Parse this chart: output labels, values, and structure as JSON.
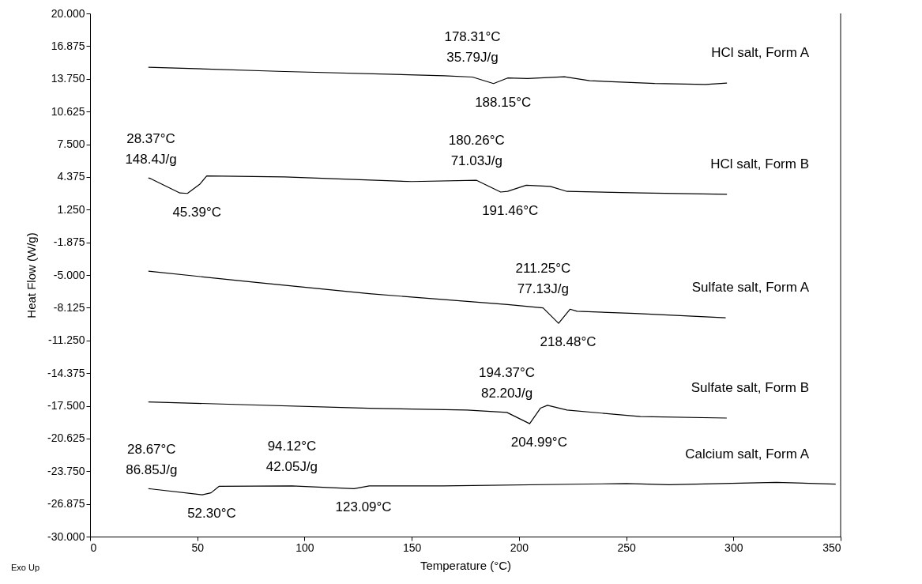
{
  "chart_data": {
    "type": "line",
    "xlabel": "Temperature (°C)",
    "ylabel": "Heat Flow (W/g)",
    "xlim": [
      0,
      350
    ],
    "xticks": [
      0,
      50,
      100,
      150,
      200,
      250,
      300,
      350
    ],
    "ylim": [
      -30,
      20
    ],
    "yticks": [
      {
        "value": 20,
        "label": "20.000"
      },
      16.875,
      {
        "value": 13.75,
        "label": "13.750"
      },
      10.625,
      {
        "value": 7.5,
        "label": "7.500"
      },
      4.375,
      {
        "value": 1.25,
        "label": "1.250"
      },
      -1.875,
      {
        "value": -5,
        "label": "-5.000"
      },
      -8.125,
      {
        "value": -11.25,
        "label": "-11.250"
      },
      -14.375,
      {
        "value": -17.5,
        "label": "-17.500"
      },
      -20.625,
      {
        "value": -23.75,
        "label": "-23.750"
      },
      -26.875,
      {
        "value": -30,
        "label": "-30.000"
      }
    ],
    "grid": false,
    "legend": false,
    "marker": "none",
    "line_style": "solid",
    "series": [
      {
        "name": "HCl salt, Form A",
        "color": "#000000",
        "x": [
          27.2,
          90.7,
          165.2,
          178.31,
          188.15,
          194.7,
          204,
          221.2,
          233,
          263.3,
          287,
          297
        ],
        "values": [
          14.86,
          14.45,
          14.05,
          13.92,
          13.3,
          13.83,
          13.78,
          13.95,
          13.57,
          13.3,
          13.21,
          13.35
        ]
      },
      {
        "name": "HCl salt, Form B",
        "color": "#000000",
        "x": [
          27.2,
          28.37,
          41.9,
          45.39,
          51.1,
          54.4,
          90.7,
          150,
          180.26,
          191.46,
          194.7,
          203.4,
          214.6,
          222.4,
          256.7,
          297
        ],
        "values": [
          4.28,
          4.2,
          2.84,
          2.8,
          3.66,
          4.47,
          4.38,
          3.93,
          4.05,
          2.93,
          3.0,
          3.58,
          3.47,
          2.99,
          2.84,
          2.71
        ]
      },
      {
        "name": "Sulfate salt, Form A",
        "color": "#000000",
        "x": [
          27.2,
          77.5,
          130.2,
          194.7,
          211.25,
          218.48,
          223.8,
          227.1,
          254.1,
          296.4
        ],
        "values": [
          -4.63,
          -5.71,
          -6.79,
          -7.82,
          -8.14,
          -9.62,
          -8.27,
          -8.46,
          -8.68,
          -9.09
        ]
      },
      {
        "name": "Sulfate salt, Form B",
        "color": "#000000",
        "x": [
          27.2,
          130.2,
          175.7,
          194.37,
          204.99,
          210,
          213.3,
          222.4,
          256.7,
          296.9
        ],
        "values": [
          -17.13,
          -17.73,
          -17.91,
          -18.13,
          -19.21,
          -17.73,
          -17.45,
          -17.91,
          -18.53,
          -18.67
        ]
      },
      {
        "name": "Calcium salt, Form A",
        "color": "#000000",
        "x": [
          27.2,
          28.67,
          52.3,
          56.4,
          60.1,
          94.12,
          123.09,
          130.2,
          164.5,
          250.1,
          269.9,
          320,
          347.7
        ],
        "values": [
          -25.42,
          -25.45,
          -26.01,
          -25.82,
          -25.2,
          -25.15,
          -25.42,
          -25.15,
          -25.15,
          -24.93,
          -25.04,
          -24.82,
          -24.98
        ]
      }
    ],
    "annotations": [
      {
        "text": "178.31°C",
        "x": 178.31,
        "y": 13.92
      },
      {
        "text": "35.79J/g",
        "x": 178.31,
        "y": 13.92
      },
      {
        "text": "188.15°C",
        "x": 188.15,
        "y": 13.3
      },
      {
        "text": "28.37°C",
        "x": 28.37,
        "y": 4.2
      },
      {
        "text": "148.4J/g",
        "x": 28.37,
        "y": 4.2
      },
      {
        "text": "180.26°C",
        "x": 180.26,
        "y": 4.05
      },
      {
        "text": "71.03J/g",
        "x": 180.26,
        "y": 4.05
      },
      {
        "text": "45.39°C",
        "x": 45.39,
        "y": 2.8
      },
      {
        "text": "191.46°C",
        "x": 191.46,
        "y": 2.93
      },
      {
        "text": "211.25°C",
        "x": 211.25,
        "y": -8.14
      },
      {
        "text": "77.13J/g",
        "x": 211.25,
        "y": -8.14
      },
      {
        "text": "218.48°C",
        "x": 218.48,
        "y": -9.62
      },
      {
        "text": "194.37°C",
        "x": 194.37,
        "y": -18.13
      },
      {
        "text": "82.20J/g",
        "x": 194.37,
        "y": -18.13
      },
      {
        "text": "204.99°C",
        "x": 204.99,
        "y": -19.21
      },
      {
        "text": "28.67°C",
        "x": 28.67,
        "y": -25.45
      },
      {
        "text": "86.85J/g",
        "x": 28.67,
        "y": -25.45
      },
      {
        "text": "94.12°C",
        "x": 94.12,
        "y": -25.15
      },
      {
        "text": "42.05J/g",
        "x": 94.12,
        "y": -25.15
      },
      {
        "text": "52.30°C",
        "x": 52.3,
        "y": -26.01
      },
      {
        "text": "123.09°C",
        "x": 123.09,
        "y": -25.42
      },
      "Exo Up"
    ]
  }
}
